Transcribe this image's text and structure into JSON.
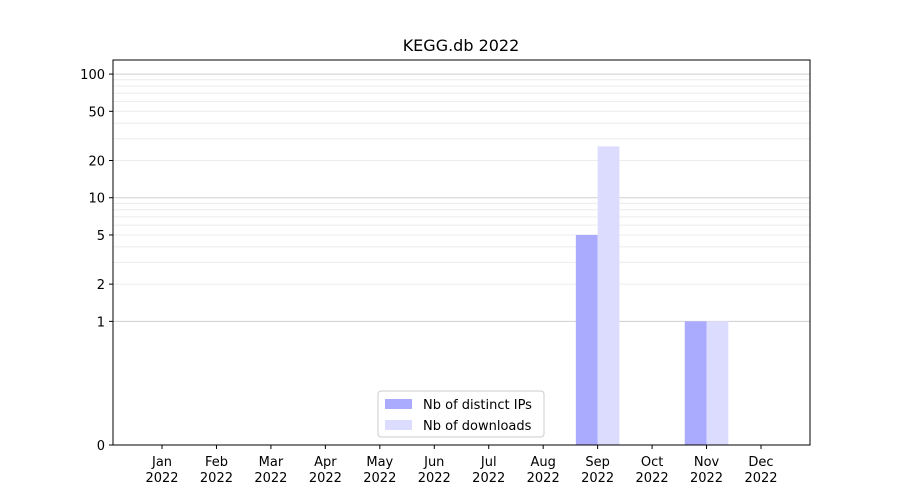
{
  "chart_data": {
    "type": "bar",
    "title": "KEGG.db 2022",
    "xlabel": "",
    "ylabel": "",
    "y_scale": "symlog",
    "ylim": [
      0,
      130
    ],
    "y_ticks": [
      0,
      1,
      2,
      5,
      10,
      20,
      50,
      100
    ],
    "y_tick_labels": [
      "0",
      "1",
      "2",
      "5",
      "10",
      "20",
      "50",
      "100"
    ],
    "categories": [
      "Jan\n2022",
      "Feb\n2022",
      "Mar\n2022",
      "Apr\n2022",
      "May\n2022",
      "Jun\n2022",
      "Jul\n2022",
      "Aug\n2022",
      "Sep\n2022",
      "Oct\n2022",
      "Nov\n2022",
      "Dec\n2022"
    ],
    "series": [
      {
        "name": "Nb of distinct IPs",
        "color": "#aaaaff",
        "values": [
          0,
          0,
          0,
          0,
          0,
          0,
          0,
          0,
          5,
          0,
          1,
          0
        ]
      },
      {
        "name": "Nb of downloads",
        "color": "#dcdcff",
        "values": [
          0,
          0,
          0,
          0,
          0,
          0,
          0,
          0,
          26,
          0,
          1,
          0
        ]
      }
    ],
    "grid": true,
    "legend_position": "bottom-center"
  }
}
